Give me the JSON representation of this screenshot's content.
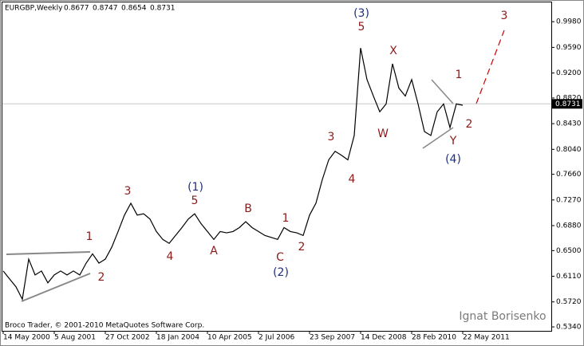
{
  "chart_data": {
    "type": "line",
    "title": "EURGBP,Weekly",
    "ohlc": [
      0.8677,
      0.8747,
      0.8654,
      0.8731
    ],
    "last_price": 0.8731,
    "color": "#000000",
    "categories": [
      "14 May 2000",
      null,
      null,
      null,
      null,
      null,
      null,
      null,
      "5 Aug 2001",
      null,
      null,
      null,
      null,
      null,
      null,
      null,
      "27 Oct 2002",
      null,
      null,
      null,
      null,
      null,
      null,
      null,
      "18 Jan 2004",
      null,
      null,
      null,
      null,
      null,
      null,
      null,
      "10 Apr 2005",
      null,
      null,
      null,
      null,
      null,
      null,
      null,
      "2 Jul 2006",
      null,
      null,
      null,
      null,
      null,
      null,
      null,
      "23 Sep 2007",
      null,
      null,
      null,
      null,
      null,
      null,
      null,
      "14 Dec 2008",
      null,
      null,
      null,
      null,
      null,
      null,
      null,
      "28 Feb 2010",
      null,
      null,
      null,
      null,
      null,
      null,
      null,
      "22 May 2011"
    ],
    "values": [
      0.619,
      0.607,
      0.595,
      0.576,
      0.637,
      0.613,
      0.619,
      0.601,
      0.613,
      0.619,
      0.613,
      0.619,
      0.613,
      0.631,
      0.645,
      0.631,
      0.637,
      0.655,
      0.679,
      0.704,
      0.722,
      0.704,
      0.706,
      0.698,
      0.679,
      0.667,
      0.661,
      0.673,
      0.685,
      0.698,
      0.706,
      0.691,
      0.679,
      0.667,
      0.679,
      0.677,
      0.679,
      0.685,
      0.694,
      0.685,
      0.679,
      0.673,
      0.67,
      0.667,
      0.685,
      0.679,
      0.677,
      0.673,
      0.704,
      0.722,
      0.758,
      0.788,
      0.801,
      0.795,
      0.788,
      0.825,
      0.958,
      0.91,
      0.885,
      0.861,
      0.873,
      0.934,
      0.897,
      0.885,
      0.91,
      0.873,
      0.831,
      0.825,
      0.861,
      0.873,
      0.837,
      0.873,
      0.871
    ],
    "ylim": [
      0.528,
      1.031
    ],
    "yticks": [
      {
        "value": 0.998,
        "label": "0.9980"
      },
      {
        "value": 0.959,
        "label": "0.9590"
      },
      {
        "value": 0.92,
        "label": "0.9200"
      },
      {
        "value": 0.882,
        "label": "0.8820"
      },
      {
        "value": 0.843,
        "label": "0.8430"
      },
      {
        "value": 0.804,
        "label": "0.8040"
      },
      {
        "value": 0.766,
        "label": "0.7660"
      },
      {
        "value": 0.727,
        "label": "0.7270"
      },
      {
        "value": 0.688,
        "label": "0.6880"
      },
      {
        "value": 0.65,
        "label": "0.6500"
      },
      {
        "value": 0.611,
        "label": "0.6110"
      },
      {
        "value": 0.572,
        "label": "0.5720"
      },
      {
        "value": 0.534,
        "label": "0.5340"
      }
    ],
    "annotations": [
      {
        "text": "1",
        "color": "#8b1a1a"
      },
      {
        "text": "2",
        "color": "#8b1a1a"
      },
      {
        "text": "3",
        "color": "#8b1a1a"
      },
      {
        "text": "(1)",
        "color": "#1f2f7f"
      },
      {
        "text": "5",
        "color": "#8b1a1a"
      },
      {
        "text": "4",
        "color": "#8b1a1a"
      },
      {
        "text": "A",
        "color": "#8b1a1a"
      },
      {
        "text": "B",
        "color": "#8b1a1a"
      },
      {
        "text": "1",
        "color": "#8b1a1a"
      },
      {
        "text": "C",
        "color": "#8b1a1a"
      },
      {
        "text": "(2)",
        "color": "#1f2f7f"
      },
      {
        "text": "2",
        "color": "#8b1a1a"
      },
      {
        "text": "3",
        "color": "#8b1a1a"
      },
      {
        "text": "4",
        "color": "#8b1a1a"
      },
      {
        "text": "(3)",
        "color": "#1f2f7f"
      },
      {
        "text": "5",
        "color": "#8b1a1a"
      },
      {
        "text": "X",
        "color": "#8b1a1a"
      },
      {
        "text": "W",
        "color": "#8b1a1a"
      },
      {
        "text": "1",
        "color": "#8b1a1a"
      },
      {
        "text": "2",
        "color": "#8b1a1a"
      },
      {
        "text": "Y",
        "color": "#8b1a1a"
      },
      {
        "text": "(4)",
        "color": "#1f2f7f"
      },
      {
        "text": "3",
        "color": "#8b1a1a"
      }
    ],
    "copyright": "Broco Trader, © 2001-2010 MetaQuotes Software Corp.",
    "author": "Ignat Borisenko"
  }
}
